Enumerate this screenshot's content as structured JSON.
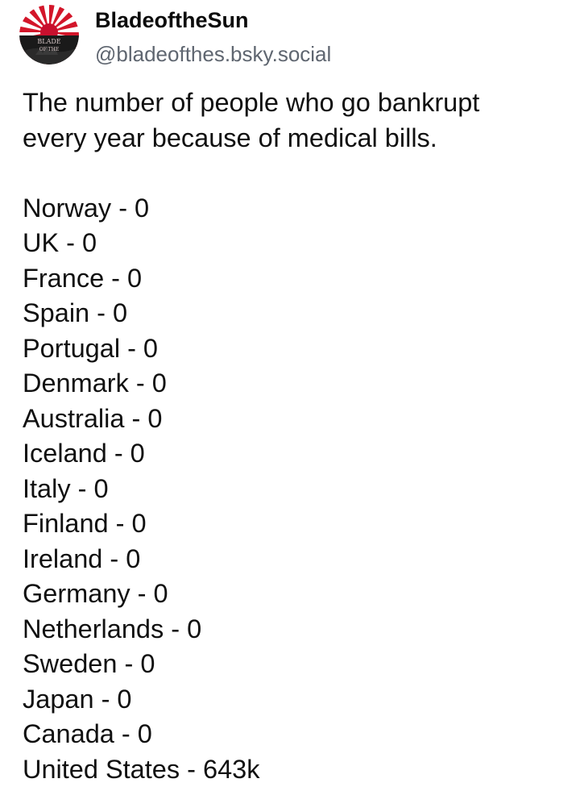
{
  "post": {
    "author": {
      "display_name": "BladeoftheSun",
      "handle": "@bladeofthes.bsky.social",
      "avatar": {
        "icon": "rising-sun-avatar-icon",
        "line1": "BLADE",
        "line2": "OF THE",
        "colors": {
          "ray": "#d3162a",
          "sun": "#c8102e",
          "background": "#ffffff",
          "band": "#1a1a1a"
        }
      }
    },
    "text": {
      "intro_line1": "The number of people who go bankrupt",
      "intro_line2": "every year because of medical bills.",
      "countries": [
        {
          "line": "Norway - 0"
        },
        {
          "line": "UK - 0"
        },
        {
          "line": "France - 0"
        },
        {
          "line": "Spain - 0"
        },
        {
          "line": "Portugal - 0"
        },
        {
          "line": "Denmark - 0"
        },
        {
          "line": "Australia - 0"
        },
        {
          "line": "Iceland - 0"
        },
        {
          "line": "Italy - 0"
        },
        {
          "line": "Finland - 0"
        },
        {
          "line": "Ireland - 0"
        },
        {
          "line": "Germany - 0"
        },
        {
          "line": "Netherlands - 0"
        },
        {
          "line": "Sweden - 0"
        },
        {
          "line": "Japan - 0"
        },
        {
          "line": "Canada - 0"
        },
        {
          "line": "United States - 643k"
        }
      ]
    }
  }
}
